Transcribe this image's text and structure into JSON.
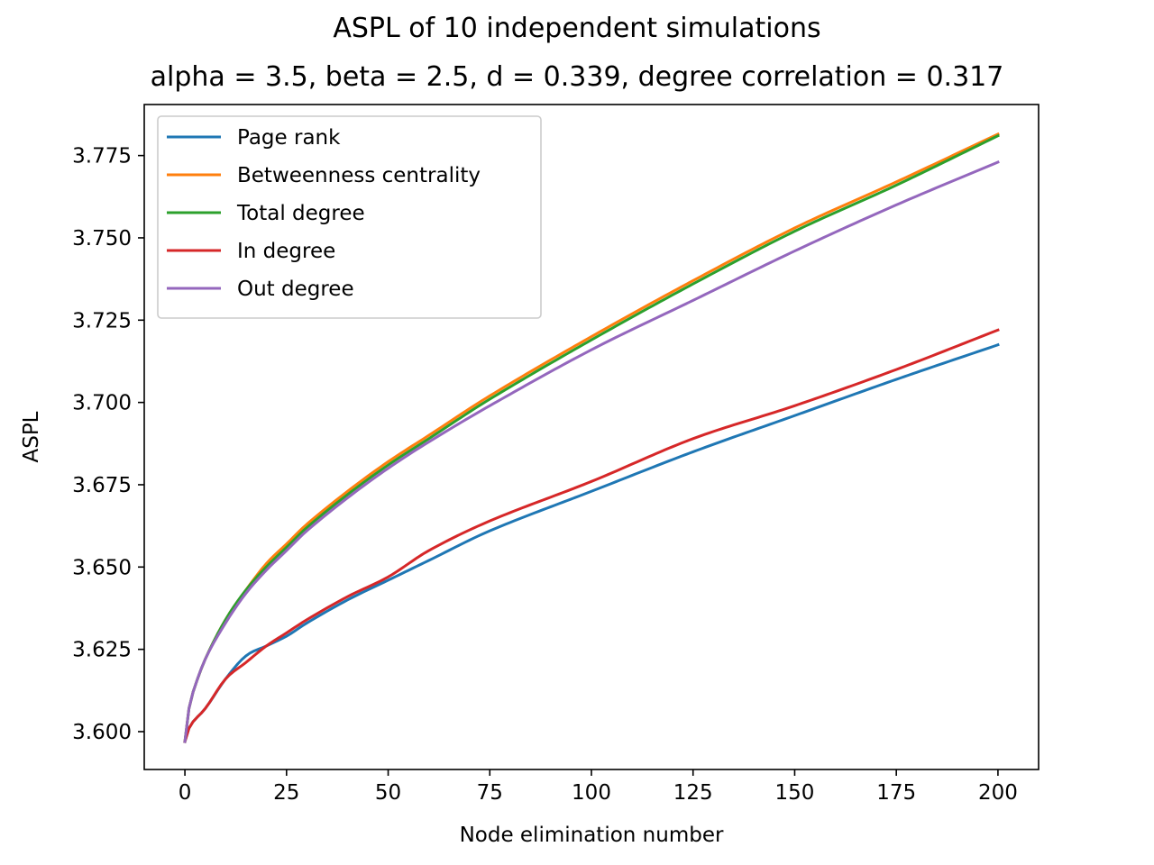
{
  "suptitle": "ASPL of 10 independent simulations",
  "chart_data": {
    "type": "line",
    "title": "alpha = 3.5, beta = 2.5, d = 0.339, degree correlation = 0.317",
    "xlabel": "Node elimination number",
    "ylabel": "ASPL",
    "xlim": [
      -10,
      210
    ],
    "ylim": [
      3.5885,
      3.7905
    ],
    "xticks": [
      0,
      25,
      50,
      75,
      100,
      125,
      150,
      175,
      200
    ],
    "yticks": [
      3.6,
      3.625,
      3.65,
      3.675,
      3.7,
      3.725,
      3.75,
      3.775
    ],
    "ytick_labels": [
      "3.600",
      "3.625",
      "3.650",
      "3.675",
      "3.700",
      "3.725",
      "3.750",
      "3.775"
    ],
    "grid": false,
    "legend_position": "upper-left",
    "x": [
      0,
      1,
      2,
      5,
      10,
      15,
      20,
      25,
      30,
      40,
      50,
      60,
      75,
      100,
      125,
      150,
      175,
      200
    ],
    "series": [
      {
        "name": "Page rank",
        "color": "#1f77b4",
        "values": [
          3.597,
          3.601,
          3.603,
          3.607,
          3.616,
          3.623,
          3.626,
          3.629,
          3.633,
          3.64,
          3.646,
          3.652,
          3.661,
          3.673,
          3.685,
          3.696,
          3.707,
          3.7175
        ]
      },
      {
        "name": "Betweenness centrality",
        "color": "#ff7f0e",
        "values": [
          3.597,
          3.607,
          3.612,
          3.622,
          3.634,
          3.643,
          3.651,
          3.657,
          3.663,
          3.673,
          3.682,
          3.69,
          3.702,
          3.72,
          3.737,
          3.753,
          3.767,
          3.7815
        ]
      },
      {
        "name": "Total degree",
        "color": "#2ca02c",
        "values": [
          3.597,
          3.607,
          3.612,
          3.622,
          3.634,
          3.643,
          3.65,
          3.656,
          3.662,
          3.672,
          3.681,
          3.689,
          3.701,
          3.719,
          3.736,
          3.752,
          3.766,
          3.781
        ]
      },
      {
        "name": "In degree",
        "color": "#d62728",
        "values": [
          3.597,
          3.601,
          3.603,
          3.607,
          3.616,
          3.621,
          3.626,
          3.63,
          3.634,
          3.641,
          3.647,
          3.655,
          3.664,
          3.676,
          3.689,
          3.699,
          3.71,
          3.722
        ]
      },
      {
        "name": "Out degree",
        "color": "#9467bd",
        "values": [
          3.597,
          3.607,
          3.612,
          3.622,
          3.633,
          3.642,
          3.649,
          3.655,
          3.661,
          3.671,
          3.68,
          3.688,
          3.699,
          3.716,
          3.731,
          3.746,
          3.76,
          3.773
        ]
      }
    ]
  }
}
